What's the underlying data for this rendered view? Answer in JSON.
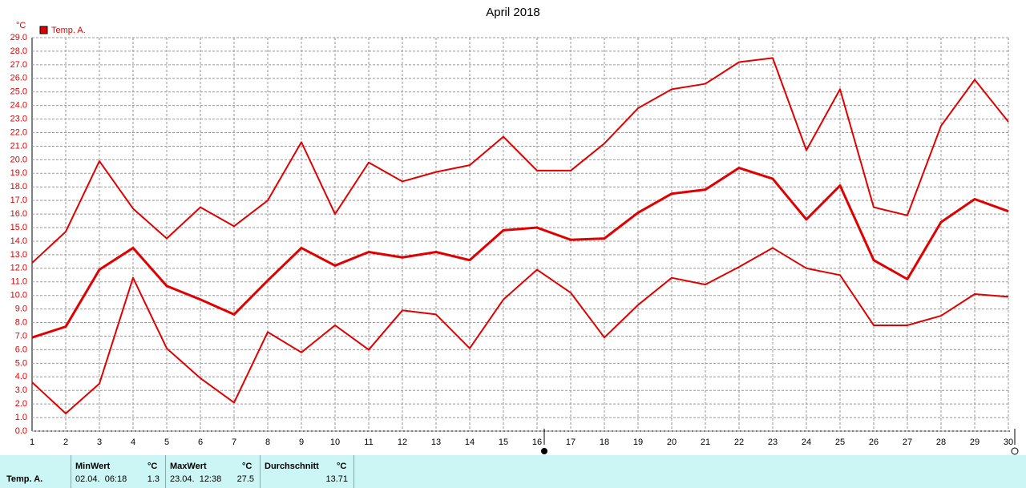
{
  "chart_data": {
    "type": "line",
    "title": "April 2018",
    "y_label": "°C",
    "legend": "Temp. A.",
    "legend_color": "#e00000",
    "x": [
      1,
      2,
      3,
      4,
      5,
      6,
      7,
      8,
      9,
      10,
      11,
      12,
      13,
      14,
      15,
      16,
      17,
      18,
      19,
      20,
      21,
      22,
      23,
      24,
      25,
      26,
      27,
      28,
      29,
      30
    ],
    "xlim": [
      1,
      30
    ],
    "xticks": [
      1,
      2,
      3,
      4,
      5,
      6,
      7,
      8,
      9,
      10,
      11,
      12,
      13,
      14,
      15,
      16,
      17,
      18,
      19,
      20,
      21,
      22,
      23,
      24,
      25,
      26,
      27,
      28,
      29,
      30
    ],
    "ylim": [
      0,
      29
    ],
    "yticks": [
      {
        "value": 0,
        "label": "0.0"
      },
      {
        "value": 1,
        "label": "1.0"
      },
      {
        "value": 2,
        "label": "2.0"
      },
      {
        "value": 3,
        "label": "3.0"
      },
      {
        "value": 4,
        "label": "4.0"
      },
      {
        "value": 5,
        "label": "5.0"
      },
      {
        "value": 6,
        "label": "6.0"
      },
      {
        "value": 7,
        "label": "7.0"
      },
      {
        "value": 8,
        "label": "8.0"
      },
      {
        "value": 9,
        "label": "9.0"
      },
      {
        "value": 10,
        "label": "10.0"
      },
      {
        "value": 11,
        "label": "11.0"
      },
      {
        "value": 12,
        "label": "12.0"
      },
      {
        "value": 13,
        "label": "13.0"
      },
      {
        "value": 14,
        "label": "14.0"
      },
      {
        "value": 15,
        "label": "15.0"
      },
      {
        "value": 16,
        "label": "16.0"
      },
      {
        "value": 17,
        "label": "17.0"
      },
      {
        "value": 18,
        "label": "18.0"
      },
      {
        "value": 19,
        "label": "19.0"
      },
      {
        "value": 20,
        "label": "20.0"
      },
      {
        "value": 21,
        "label": "21.0"
      },
      {
        "value": 22,
        "label": "22.0"
      },
      {
        "value": 23,
        "label": "23.0"
      },
      {
        "value": 24,
        "label": "24.0"
      },
      {
        "value": 25,
        "label": "25.0"
      },
      {
        "value": 26,
        "label": "26.0"
      },
      {
        "value": 27,
        "label": "27.0"
      },
      {
        "value": 28,
        "label": "28.0"
      },
      {
        "value": 29,
        "label": "29.0"
      }
    ],
    "grid": true,
    "series": [
      {
        "color": "#e00000",
        "width": 2,
        "values": [
          12.4,
          14.7,
          19.9,
          16.4,
          14.2,
          16.5,
          15.1,
          17.0,
          21.3,
          16.0,
          19.8,
          18.4,
          19.1,
          19.6,
          21.7,
          19.2,
          19.2,
          21.2,
          23.8,
          25.2,
          25.6,
          27.2,
          27.5,
          20.7,
          25.2,
          16.5,
          15.9,
          22.5,
          25.9,
          22.8
        ]
      },
      {
        "color": "#e00000",
        "width": 3,
        "values": [
          6.9,
          7.7,
          11.9,
          13.5,
          10.7,
          9.7,
          8.6,
          11.1,
          13.5,
          12.2,
          13.2,
          12.8,
          13.2,
          12.6,
          14.8,
          15.0,
          14.1,
          14.2,
          16.1,
          17.5,
          17.8,
          19.4,
          18.6,
          15.6,
          18.1,
          12.6,
          11.2,
          15.4,
          17.1,
          16.2
        ]
      },
      {
        "color": "#e00000",
        "width": 2,
        "values": [
          3.6,
          1.3,
          3.5,
          11.3,
          6.1,
          3.9,
          2.1,
          7.3,
          5.8,
          7.8,
          6.0,
          8.9,
          8.6,
          6.1,
          9.7,
          11.9,
          10.2,
          6.9,
          9.3,
          11.3,
          10.8,
          12.1,
          13.5,
          12.0,
          11.5,
          7.8,
          7.8,
          8.5,
          10.1,
          9.9
        ]
      }
    ]
  },
  "stats": {
    "sensor": "Temp. A.",
    "min": {
      "header": "MinWert",
      "unit": "°C",
      "time": "02.04.  06:18",
      "value": "1.3"
    },
    "max": {
      "header": "MaxWert",
      "unit": "°C",
      "time": "23.04.  12:38",
      "value": "27.5"
    },
    "avg": {
      "header": "Durchschnitt",
      "unit": "°C",
      "value": "13.71"
    }
  }
}
